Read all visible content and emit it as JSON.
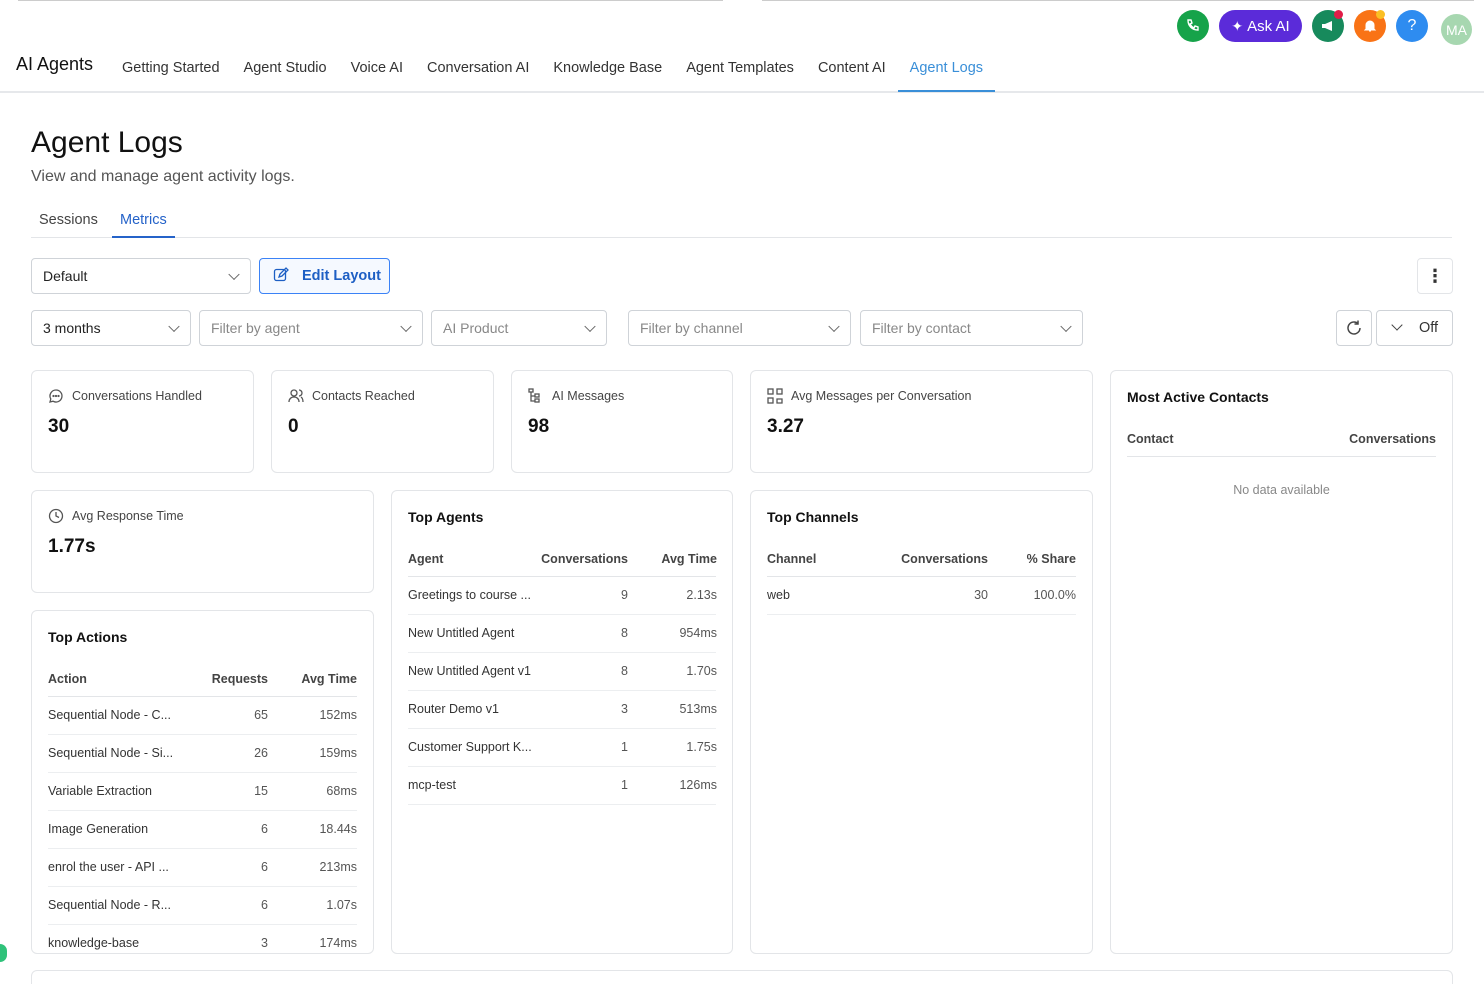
{
  "header": {
    "app_title": "AI Agents",
    "nav": [
      "Getting Started",
      "Agent Studio",
      "Voice AI",
      "Conversation AI",
      "Knowledge Base",
      "Agent Templates",
      "Content AI",
      "Agent Logs"
    ],
    "ask_ai": "Ask AI",
    "help": "?",
    "avatar": "MA"
  },
  "page": {
    "title": "Agent Logs",
    "subtitle": "View and manage agent activity logs."
  },
  "tabs": [
    "Sessions",
    "Metrics"
  ],
  "toolbar": {
    "layout": "Default",
    "edit_layout": "Edit Layout",
    "auto_refresh": "Off"
  },
  "filters": [
    "3 months",
    "Filter by agent",
    "AI Product",
    "Filter by channel",
    "Filter by contact"
  ],
  "stats": [
    {
      "label": "Conversations Handled",
      "value": 30
    },
    {
      "label": "Contacts Reached",
      "value": 0
    },
    {
      "label": "AI Messages",
      "value": 98
    },
    {
      "label": "Avg Messages per Conversation",
      "value": 3.27
    },
    {
      "label": "Avg Response Time",
      "value": "1.77s"
    }
  ],
  "top_actions": {
    "title": "Top Actions",
    "columns": [
      "Action",
      "Requests",
      "Avg Time"
    ],
    "rows": [
      [
        "Sequential Node - C...",
        65,
        "152ms"
      ],
      [
        "Sequential Node - Si...",
        26,
        "159ms"
      ],
      [
        "Variable Extraction",
        15,
        "68ms"
      ],
      [
        "Image Generation",
        6,
        "18.44s"
      ],
      [
        "enrol the user - API ...",
        6,
        "213ms"
      ],
      [
        "Sequential Node - R...",
        6,
        "1.07s"
      ],
      [
        "knowledge-base",
        3,
        "174ms"
      ]
    ]
  },
  "top_agents": {
    "title": "Top Agents",
    "columns": [
      "Agent",
      "Conversations",
      "Avg Time"
    ],
    "rows": [
      [
        "Greetings to course ...",
        9,
        "2.13s"
      ],
      [
        "New Untitled Agent",
        8,
        "954ms"
      ],
      [
        "New Untitled Agent v1",
        8,
        "1.70s"
      ],
      [
        "Router Demo v1",
        3,
        "513ms"
      ],
      [
        "Customer Support K...",
        1,
        "1.75s"
      ],
      [
        "mcp-test",
        1,
        "126ms"
      ]
    ]
  },
  "top_channels": {
    "title": "Top Channels",
    "columns": [
      "Channel",
      "Conversations",
      "% Share"
    ],
    "rows": [
      [
        "web",
        30,
        "100.0%"
      ]
    ]
  },
  "most_active_contacts": {
    "title": "Most Active Contacts",
    "columns": [
      "Contact",
      "Conversations"
    ],
    "empty": "No data available"
  }
}
